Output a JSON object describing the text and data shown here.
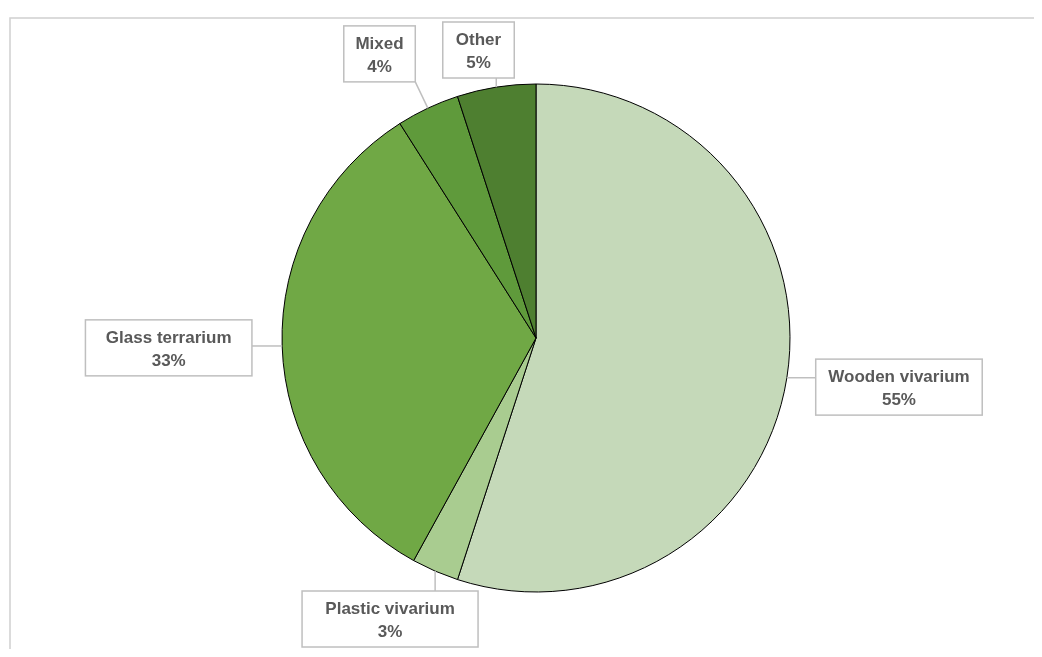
{
  "chart_data": {
    "type": "pie",
    "categories": [
      "Wooden vivarium",
      "Plastic vivarium",
      "Glass terrarium",
      "Mixed",
      "Other"
    ],
    "values": [
      55,
      3,
      33,
      4,
      5
    ],
    "value_labels": [
      "55%",
      "3%",
      "33%",
      "4%",
      "5%"
    ],
    "colors": [
      "#c5d9b9",
      "#a9cc90",
      "#70a845",
      "#5f9a3b",
      "#4e7f30"
    ]
  }
}
